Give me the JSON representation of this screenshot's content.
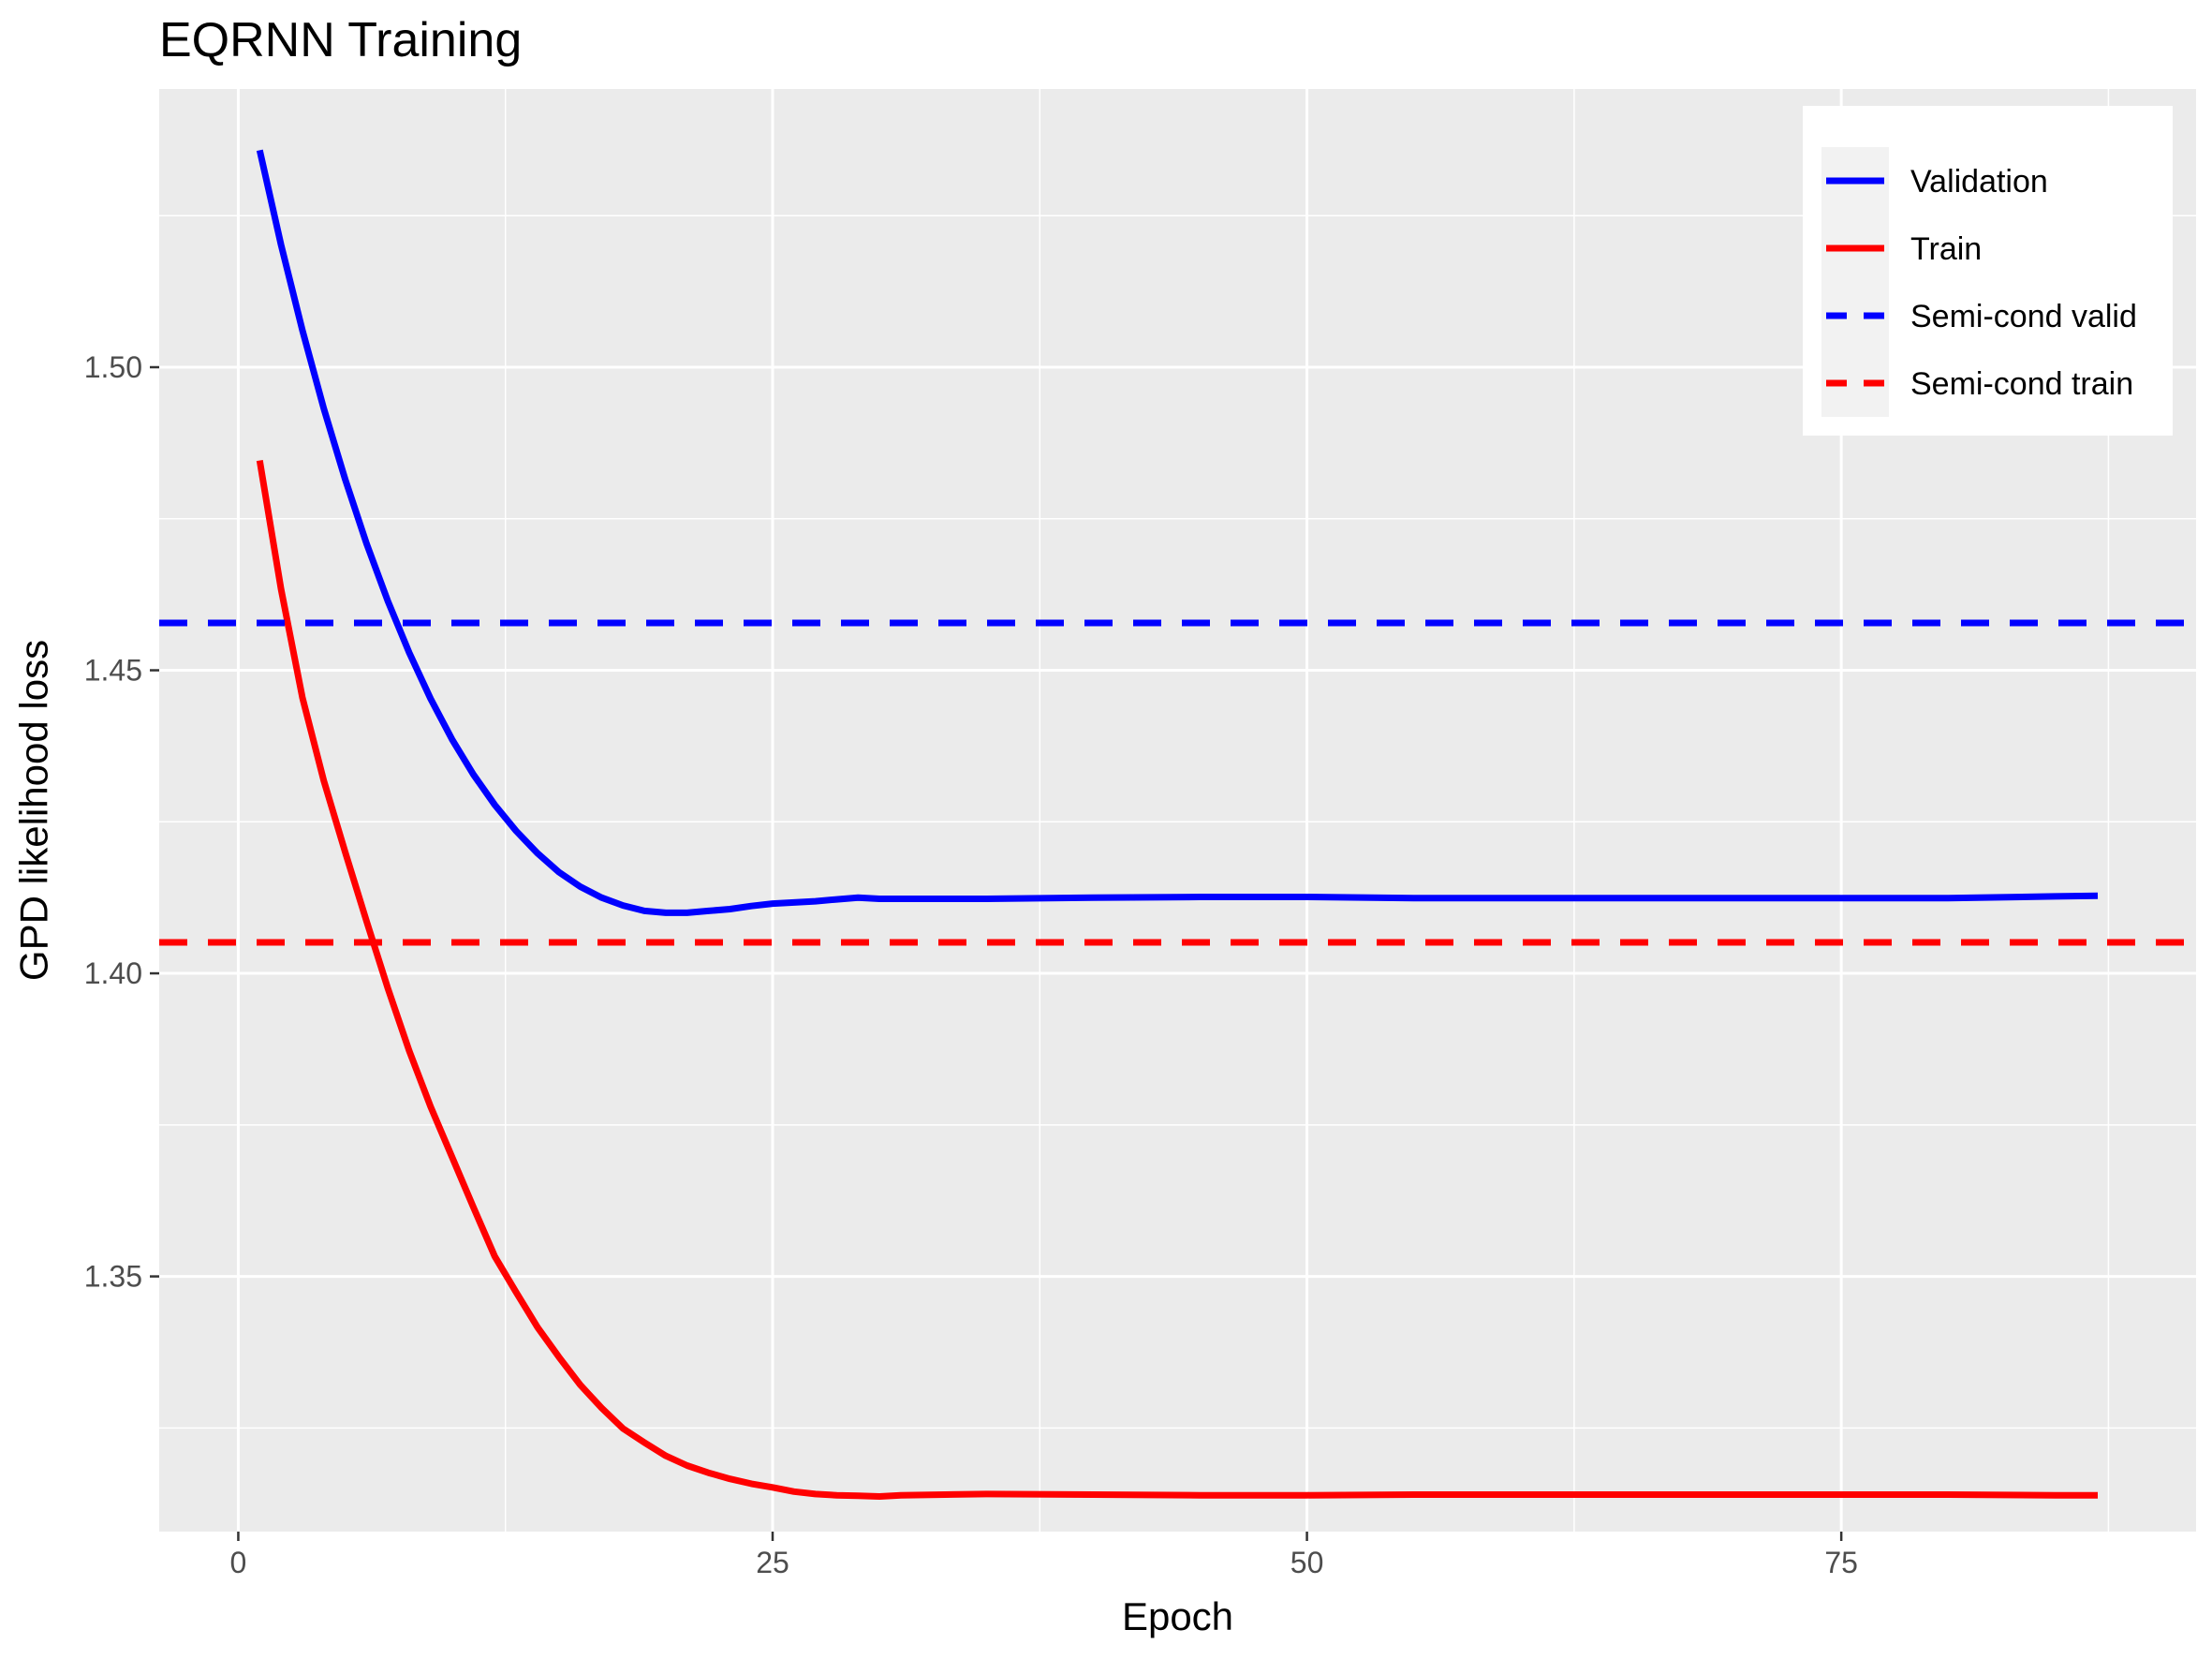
{
  "chart_data": {
    "type": "line",
    "title": "EQRNN Training",
    "xlabel": "Epoch",
    "ylabel": "GPD likelihood loss",
    "xlim": [
      -3.7,
      91.6
    ],
    "ylim": [
      1.3079,
      1.5459
    ],
    "x_ticks": [
      0,
      25,
      50,
      75
    ],
    "x_tick_labels": [
      "0",
      "25",
      "50",
      "75"
    ],
    "y_ticks": [
      1.35,
      1.4,
      1.45,
      1.5
    ],
    "y_tick_labels": [
      "1.35",
      "1.40",
      "1.45",
      "1.50"
    ],
    "grid": true,
    "legend_position": "top-right",
    "series": [
      {
        "name": "Validation",
        "color": "#0000ff",
        "linetype": "solid",
        "x": [
          1,
          2,
          3,
          4,
          5,
          6,
          7,
          8,
          9,
          10,
          11,
          12,
          13,
          14,
          15,
          16,
          17,
          18,
          19,
          20,
          21,
          22,
          23,
          24,
          25,
          26,
          27,
          28,
          29,
          30,
          35,
          40,
          45,
          50,
          55,
          60,
          65,
          70,
          75,
          80,
          85,
          87
        ],
        "y": [
          1.5358,
          1.5202,
          1.5061,
          1.4932,
          1.4815,
          1.4709,
          1.4614,
          1.4529,
          1.4453,
          1.4386,
          1.4328,
          1.4278,
          1.4235,
          1.4198,
          1.4167,
          1.4143,
          1.4125,
          1.4112,
          1.4103,
          1.41,
          1.41,
          1.4103,
          1.4106,
          1.4111,
          1.4115,
          1.4117,
          1.4119,
          1.4122,
          1.4125,
          1.4123,
          1.4123,
          1.4125,
          1.4126,
          1.4126,
          1.4124,
          1.4124,
          1.4124,
          1.4124,
          1.4124,
          1.4124,
          1.4127,
          1.4128
        ]
      },
      {
        "name": "Train",
        "color": "#ff0000",
        "linetype": "solid",
        "x": [
          1,
          2,
          3,
          4,
          5,
          6,
          7,
          8,
          9,
          10,
          11,
          12,
          13,
          14,
          15,
          16,
          17,
          18,
          19,
          20,
          21,
          22,
          23,
          24,
          25,
          26,
          27,
          28,
          29,
          30,
          31,
          35,
          40,
          45,
          50,
          55,
          60,
          65,
          70,
          75,
          80,
          85,
          87
        ],
        "y": [
          1.4846,
          1.4634,
          1.4455,
          1.4318,
          1.42,
          1.4086,
          1.3975,
          1.3872,
          1.378,
          1.3697,
          1.3614,
          1.3533,
          1.3474,
          1.3416,
          1.3367,
          1.3321,
          1.3283,
          1.3249,
          1.3226,
          1.3204,
          1.3188,
          1.3176,
          1.3166,
          1.3158,
          1.3152,
          1.3145,
          1.3141,
          1.3139,
          1.3138,
          1.3137,
          1.3139,
          1.3141,
          1.314,
          1.3139,
          1.3139,
          1.314,
          1.314,
          1.314,
          1.314,
          1.314,
          1.314,
          1.3139,
          1.3139
        ]
      },
      {
        "name": "Semi-cond valid",
        "color": "#0000ff",
        "linetype": "dashed",
        "hline": 1.4578
      },
      {
        "name": "Semi-cond train",
        "color": "#ff0000",
        "linetype": "dashed",
        "hline": 1.4051
      }
    ]
  }
}
